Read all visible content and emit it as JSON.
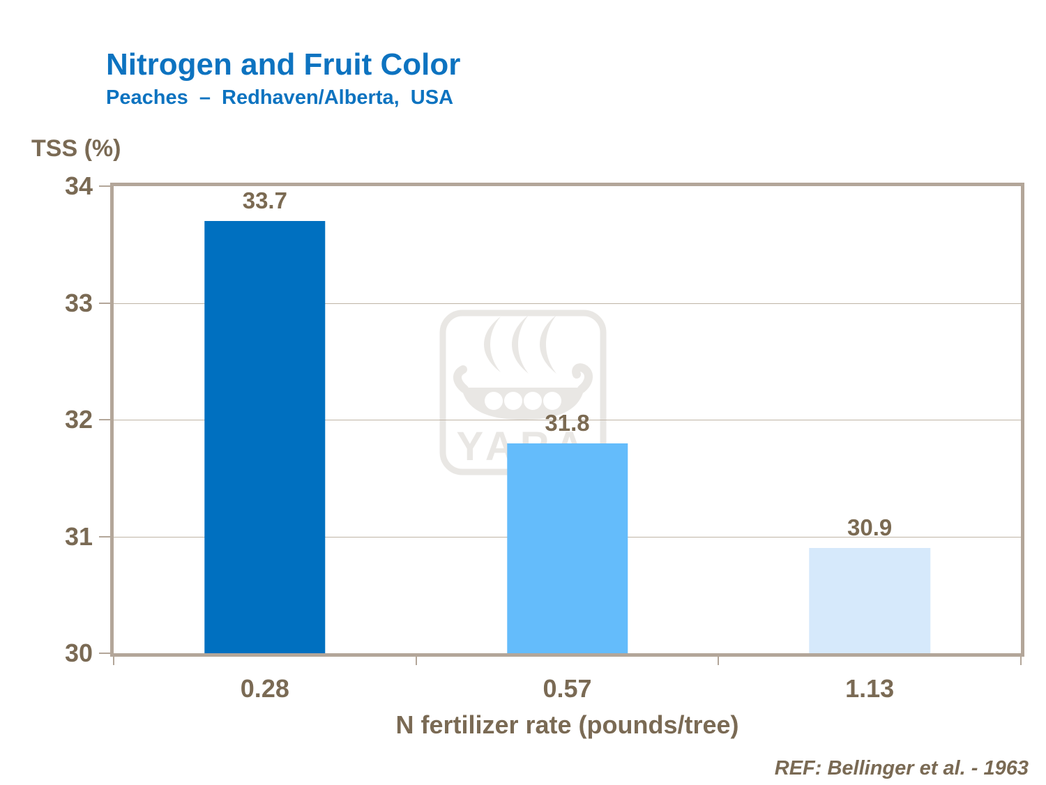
{
  "slide": {
    "title": "Nitrogen and Fruit Color",
    "subtitle": "Peaches  –  Redhaven/Alberta,  USA",
    "reference": "REF: Bellinger et al. - 1963",
    "watermark_text": "YARA"
  },
  "chart_data": {
    "type": "bar",
    "title": "Nitrogen and Fruit Color — Peaches, Redhaven/Alberta, USA",
    "ylabel": "TSS (%)",
    "xlabel": "N fertilizer rate (pounds/tree)",
    "categories": [
      "0.28",
      "0.57",
      "1.13"
    ],
    "values": [
      33.7,
      31.8,
      30.9
    ],
    "data_labels": [
      "33.7",
      "31.8",
      "30.9"
    ],
    "bar_colors": [
      "#0070c0",
      "#64bcfb",
      "#d6e9fb"
    ],
    "ylim": [
      30,
      34
    ],
    "yticks": [
      34,
      33,
      32,
      31,
      30
    ],
    "grid": true,
    "legend": "none"
  },
  "colors": {
    "title_blue": "#0d73c0",
    "text_brown": "#7a6a54",
    "frame_tan": "#b3a699",
    "gridline_tan": "#bfb4a6",
    "watermark_gray": "#e9e7e4"
  }
}
